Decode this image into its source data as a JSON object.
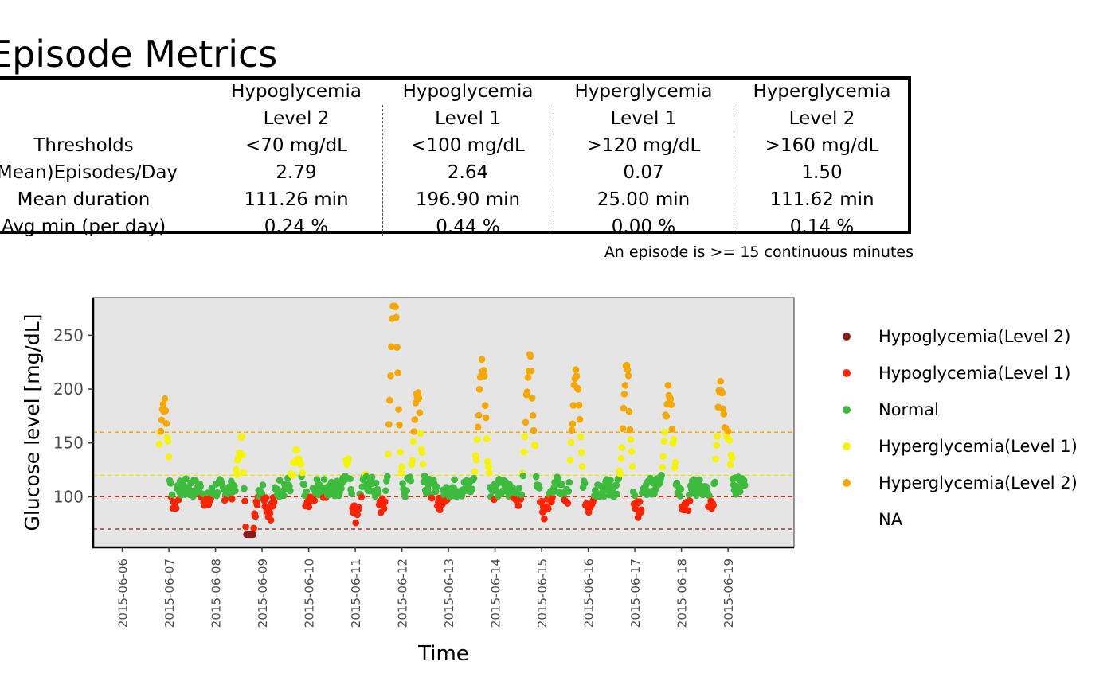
{
  "title": "Episode Metrics",
  "metrics_table": {
    "row_labels": [
      "Thresholds",
      "(Mean)Episodes/Day",
      "Mean duration",
      "Avg min (per day)"
    ],
    "columns": [
      {
        "header_line1": "Hypoglycemia",
        "header_line2": "Level 2",
        "values": [
          "<70 mg/dL",
          "2.79",
          "111.26 min",
          "0.24 %"
        ]
      },
      {
        "header_line1": "Hypoglycemia",
        "header_line2": "Level 1",
        "values": [
          "<100 mg/dL",
          "2.64",
          "196.90 min",
          "0.44 %"
        ]
      },
      {
        "header_line1": "Hyperglycemia",
        "header_line2": "Level 1",
        "values": [
          ">120 mg/dL",
          "0.07",
          "25.00 min",
          "0.00 %"
        ]
      },
      {
        "header_line1": "Hyperglycemia",
        "header_line2": "Level 2",
        "values": [
          ">160 mg/dL",
          "1.50",
          "111.62 min",
          "0.14 %"
        ]
      }
    ],
    "footnote": "An episode is >= 15 continuous minutes"
  },
  "chart_data": {
    "type": "scatter",
    "title": "",
    "xlabel": "Time",
    "ylabel": "Glucose level [mg/dL]",
    "x_ticks": [
      "2015-06-06",
      "2015-06-07",
      "2015-06-08",
      "2015-06-09",
      "2015-06-10",
      "2015-06-11",
      "2015-06-12",
      "2015-06-13",
      "2015-06-14",
      "2015-06-15",
      "2015-06-16",
      "2015-06-17",
      "2015-06-18",
      "2015-06-19"
    ],
    "y_ticks": [
      100,
      150,
      200,
      250
    ],
    "xlim": [
      "2015-06-05 09:00",
      "2015-06-20 10:00"
    ],
    "ylim": [
      53,
      285
    ],
    "panel_background": "#e5e5e5",
    "grid": false,
    "legend_position": "right",
    "thresholds": [
      {
        "value": 70,
        "color": "#8b1a1a"
      },
      {
        "value": 100,
        "color": "#ff2200"
      },
      {
        "value": 120,
        "color": "#f2e600"
      },
      {
        "value": 160,
        "color": "#f2a100"
      }
    ],
    "categories": [
      {
        "name": "Hypoglycemia(Level 2)",
        "color": "#8b1a1a"
      },
      {
        "name": "Hypoglycemia(Level 1)",
        "color": "#ff2200"
      },
      {
        "name": "Normal",
        "color": "#3dbb3d"
      },
      {
        "name": "Hyperglycemia(Level 1)",
        "color": "#f5f500"
      },
      {
        "name": "Hyperglycemia(Level 2)",
        "color": "#f7a800"
      },
      {
        "name": "NA",
        "color": null
      }
    ],
    "series_approx": [
      {
        "name": "Hypoglycemia(Level 2)",
        "x": [
          "2015-06-08 17:00",
          "2015-06-08 17:20",
          "2015-06-08 17:40"
        ],
        "y": [
          68,
          65,
          67
        ]
      },
      {
        "name": "Hypoglycemia(Level 1)",
        "x": [
          "2015-06-07 02:00",
          "2015-06-07 20:00",
          "2015-06-08 15:00",
          "2015-06-09 04:00",
          "2015-06-10 00:00",
          "2015-06-11 00:00",
          "2015-06-11 14:00",
          "2015-06-12 20:00",
          "2015-06-13 20:00",
          "2015-06-14 14:00",
          "2015-06-15 02:00",
          "2015-06-15 14:00",
          "2015-06-16 00:00",
          "2015-06-16 22:00",
          "2015-06-17 02:00",
          "2015-06-18 02:00",
          "2015-06-18 16:00"
        ],
        "y": [
          88,
          94,
          90,
          84,
          91,
          80,
          88,
          94,
          92,
          88,
          84,
          86,
          90,
          84,
          88,
          86,
          84
        ]
      },
      {
        "name": "Normal",
        "x": [
          "2015-06-07 00:00",
          "2015-06-07 12:00",
          "2015-06-08 06:00",
          "2015-06-09 12:00",
          "2015-06-10 12:00",
          "2015-06-11 06:00",
          "2015-06-12 06:00",
          "2015-06-13 08:00",
          "2015-06-14 08:00",
          "2015-06-15 08:00",
          "2015-06-16 08:00",
          "2015-06-17 08:00",
          "2015-06-18 08:00",
          "2015-06-19 08:00"
        ],
        "y": [
          112,
          108,
          104,
          110,
          106,
          114,
          112,
          108,
          106,
          110,
          108,
          112,
          110,
          116
        ]
      },
      {
        "name": "Hyperglycemia(Level 1)",
        "x": [
          "2015-06-06 20:00",
          "2015-06-09 18:00",
          "2015-06-10 20:00",
          "2015-06-11 20:00",
          "2015-06-13 16:00",
          "2015-06-14 16:00",
          "2015-06-15 16:00",
          "2015-06-16 20:00",
          "2015-06-17 16:00",
          "2015-06-19 00:00"
        ],
        "y": [
          145,
          140,
          135,
          150,
          148,
          140,
          145,
          150,
          148,
          150
        ]
      },
      {
        "name": "Hyperglycemia(Level 2)",
        "x": [
          "2015-06-06 22:00",
          "2015-06-08 14:00",
          "2015-06-11 20:00",
          "2015-06-12 08:00",
          "2015-06-13 18:00",
          "2015-06-14 18:00",
          "2015-06-15 18:00",
          "2015-06-16 20:00",
          "2015-06-17 18:00",
          "2015-06-18 20:00"
        ],
        "y": [
          172,
          180,
          270,
          205,
          220,
          225,
          205,
          200,
          182,
          210
        ]
      }
    ]
  }
}
